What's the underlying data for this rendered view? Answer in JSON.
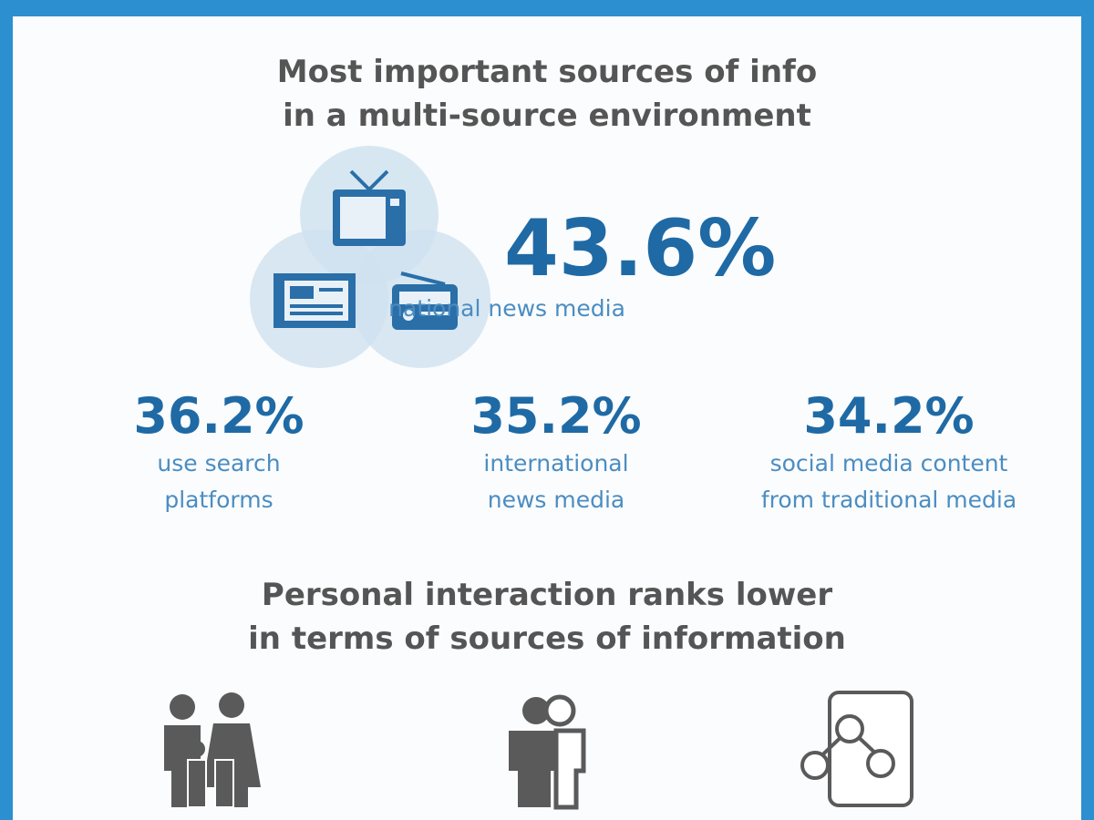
{
  "section1": {
    "title": [
      "Most important sources of info",
      "in a multi-source environment"
    ],
    "headline": {
      "value": "43.6%",
      "label": "national news media"
    },
    "stats": [
      {
        "value": "36.2%",
        "label": [
          "use search",
          "platforms"
        ]
      },
      {
        "value": "35.2%",
        "label": [
          "international",
          "news media"
        ]
      },
      {
        "value": "34.2%",
        "label": [
          "social media content",
          "from traditional media"
        ]
      }
    ]
  },
  "section2": {
    "title": [
      "Personal interaction ranks lower",
      "in terms of sources of information"
    ]
  }
}
